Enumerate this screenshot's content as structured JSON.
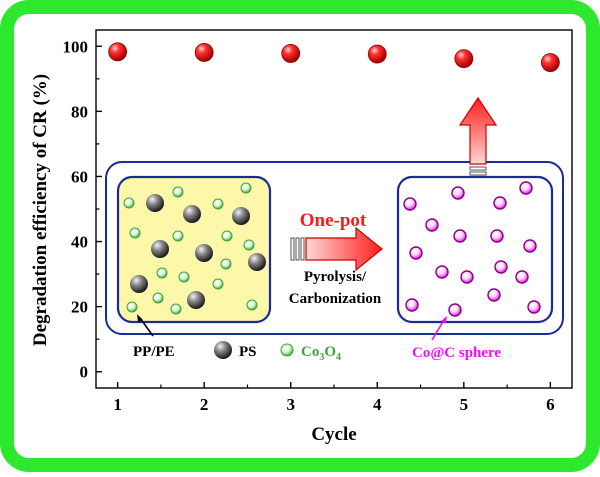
{
  "colors": {
    "frame_green": "#2ee82e",
    "point_red": "#ee1111",
    "panel_blue": "#1a2a9a",
    "left_box_fill": "#fdf7a9",
    "arrow_red": "#ff2a2a",
    "ps_gray": "#555555",
    "co3o4_green": "#3aa63a",
    "coc_magenta": "#ee11ee"
  },
  "chart_data": {
    "type": "scatter",
    "title": "",
    "xlabel": "Cycle",
    "ylabel": "Degradation efficiency of CR (%)",
    "x": [
      1,
      2,
      3,
      4,
      5,
      6
    ],
    "y": [
      98.3,
      98.1,
      97.8,
      97.6,
      96.2,
      95.0
    ],
    "xlim": [
      0.75,
      6.25
    ],
    "ylim": [
      -5,
      105
    ],
    "xticks": [
      1,
      2,
      3,
      4,
      5,
      6
    ],
    "yticks": [
      0,
      20,
      40,
      60,
      80,
      100
    ],
    "grid": false,
    "legend": "none"
  },
  "inset": {
    "arrow_label": "One-pot",
    "process_line1": "Pyrolysis/",
    "process_line2": "Carbonization",
    "legend_ppe": "PP/PE",
    "legend_ps": "PS",
    "legend_co3o4_base": "Co",
    "legend_co3o4_sub1": "3",
    "legend_co3o4_mid": "O",
    "legend_co3o4_sub2": "4",
    "product_label": "Co@C sphere"
  }
}
